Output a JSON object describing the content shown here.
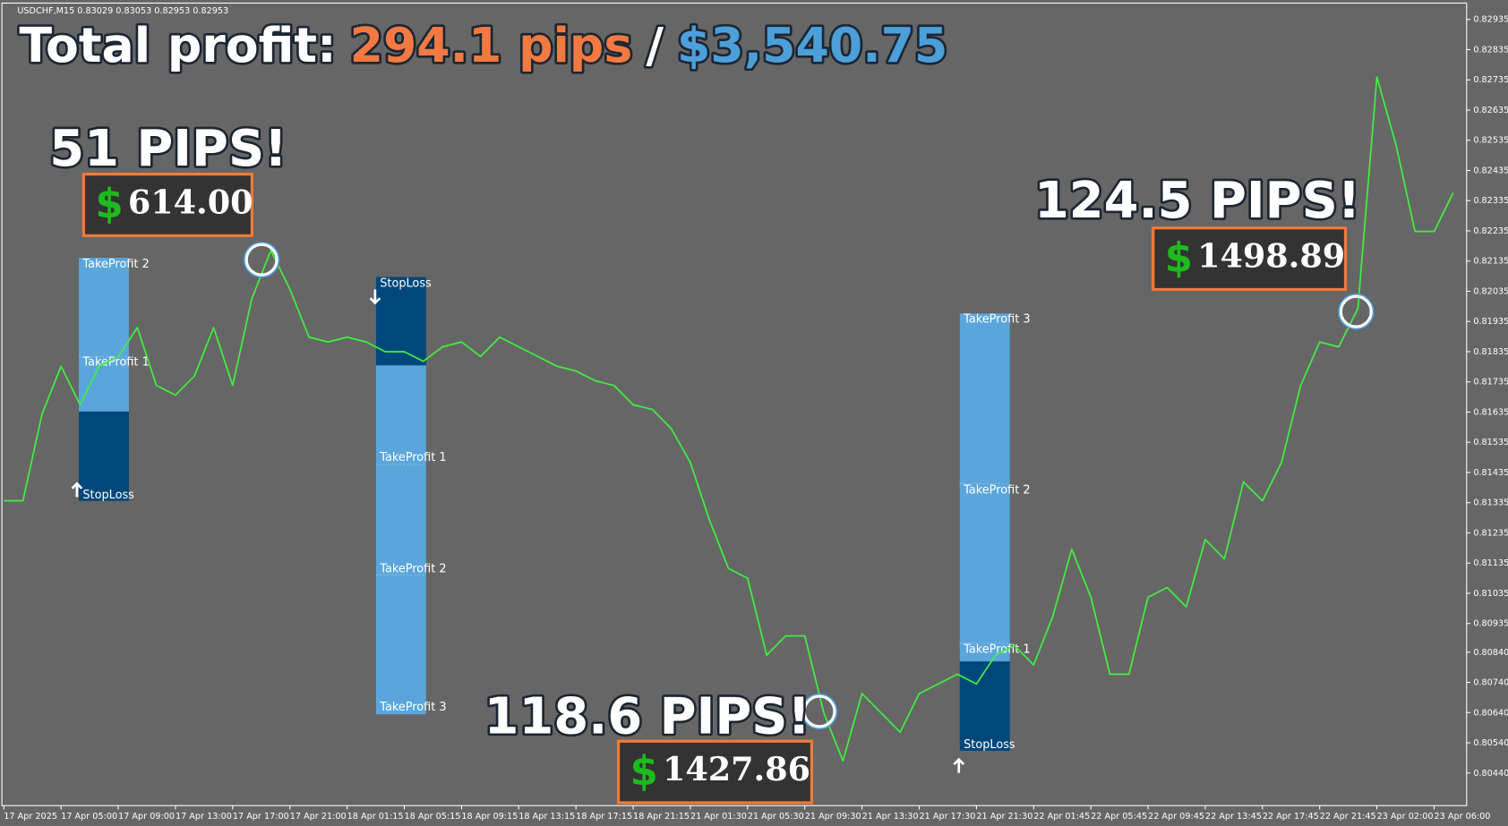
{
  "chart_data": {
    "type": "line",
    "header": "USDCHF,M15  0.83029 0.83053 0.82953 0.82953",
    "title": {
      "label": "Total profit:",
      "pips": "294.1 pips",
      "separator": "/",
      "amount": "$3,540.75"
    },
    "categories": [
      "17 Apr 2025",
      null,
      null,
      "17 Apr 05:00",
      null,
      null,
      "17 Apr 09:00",
      null,
      null,
      "17 Apr 13:00",
      null,
      null,
      "17 Apr 17:00",
      null,
      null,
      "17 Apr 21:00",
      null,
      null,
      "18 Apr 01:15",
      null,
      null,
      "18 Apr 05:15",
      null,
      null,
      "18 Apr 09:15",
      null,
      null,
      "18 Apr 13:15",
      null,
      null,
      "18 Apr 17:15",
      null,
      null,
      "18 Apr 21:15",
      null,
      null,
      "21 Apr 01:30",
      null,
      null,
      "21 Apr 05:30",
      null,
      null,
      "21 Apr 09:30",
      null,
      null,
      "21 Apr 13:30",
      null,
      null,
      "21 Apr 17:30",
      null,
      null,
      "21 Apr 21:30",
      null,
      null,
      "22 Apr 01:45",
      null,
      null,
      "22 Apr 05:45",
      null,
      null,
      "22 Apr 09:45",
      null,
      null,
      "22 Apr 13:45",
      null,
      null,
      "22 Apr 17:45",
      null,
      null,
      "22 Apr 21:45",
      null,
      null,
      "23 Apr 02:00",
      null,
      null,
      "23 Apr 06:00",
      null
    ],
    "values": [
      0.81341,
      0.81341,
      0.81628,
      0.81787,
      0.81659,
      0.81787,
      0.81819,
      0.81915,
      0.81723,
      0.81691,
      0.81755,
      0.81915,
      0.81723,
      0.8201,
      0.8217,
      0.82042,
      0.81883,
      0.81867,
      0.81883,
      0.81867,
      0.81835,
      0.81835,
      0.81803,
      0.81851,
      0.81867,
      0.81819,
      0.81883,
      0.81851,
      0.81819,
      0.81787,
      0.81771,
      0.81739,
      0.81723,
      0.81659,
      0.81644,
      0.8158,
      0.81468,
      0.81277,
      0.81117,
      0.81085,
      0.8083,
      0.80894,
      0.80894,
      0.80639,
      0.8048,
      0.80703,
      0.80639,
      0.80575,
      0.80703,
      0.80735,
      0.80767,
      0.80735,
      0.8083,
      0.80862,
      0.80798,
      0.80958,
      0.81181,
      0.81022,
      0.80767,
      0.80767,
      0.81022,
      0.81054,
      0.8099,
      0.81213,
      0.81149,
      0.81404,
      0.81341,
      0.81468,
      0.81723,
      0.81867,
      0.81851,
      0.81978,
      0.82744,
      0.8252,
      0.82233,
      0.82233,
      0.82361
    ],
    "color": "#3ff03f",
    "ylim": [
      0.80332,
      0.82986
    ],
    "yticks": [
      0.82935,
      0.82835,
      0.82735,
      0.82635,
      0.82535,
      0.82435,
      0.82335,
      0.82235,
      0.82135,
      0.82035,
      0.81935,
      0.81835,
      0.81735,
      0.81635,
      0.81535,
      0.81435,
      0.81335,
      0.81235,
      0.81135,
      0.81035,
      0.80935,
      {
        "value": 0.8084,
        "label": "0.80840"
      },
      {
        "value": 0.8074,
        "label": "0.80740"
      },
      {
        "value": 0.8064,
        "label": "0.80640"
      },
      {
        "value": 0.8054,
        "label": "0.80540"
      },
      {
        "value": 0.8044,
        "label": "0.80440"
      }
    ],
    "annotations": [
      {
        "pips": "51 PIPS!",
        "symbol": "$",
        "amount": "614.00"
      },
      {
        "pips": "118.6 PIPS!",
        "symbol": "$",
        "amount": "1427.86"
      },
      {
        "pips": "124.5 PIPS!",
        "symbol": "$",
        "amount": "1498.89"
      }
    ],
    "trades": [
      {
        "labels": [
          "TakeProfit 2",
          "TakeProfit 1",
          "StopLoss"
        ]
      },
      {
        "labels": [
          "StopLoss",
          "TakeProfit 1",
          "TakeProfit 2",
          "TakeProfit 3"
        ]
      },
      {
        "labels": [
          "TakeProfit 3",
          "TakeProfit 2",
          "TakeProfit 1",
          "StopLoss"
        ]
      }
    ]
  }
}
